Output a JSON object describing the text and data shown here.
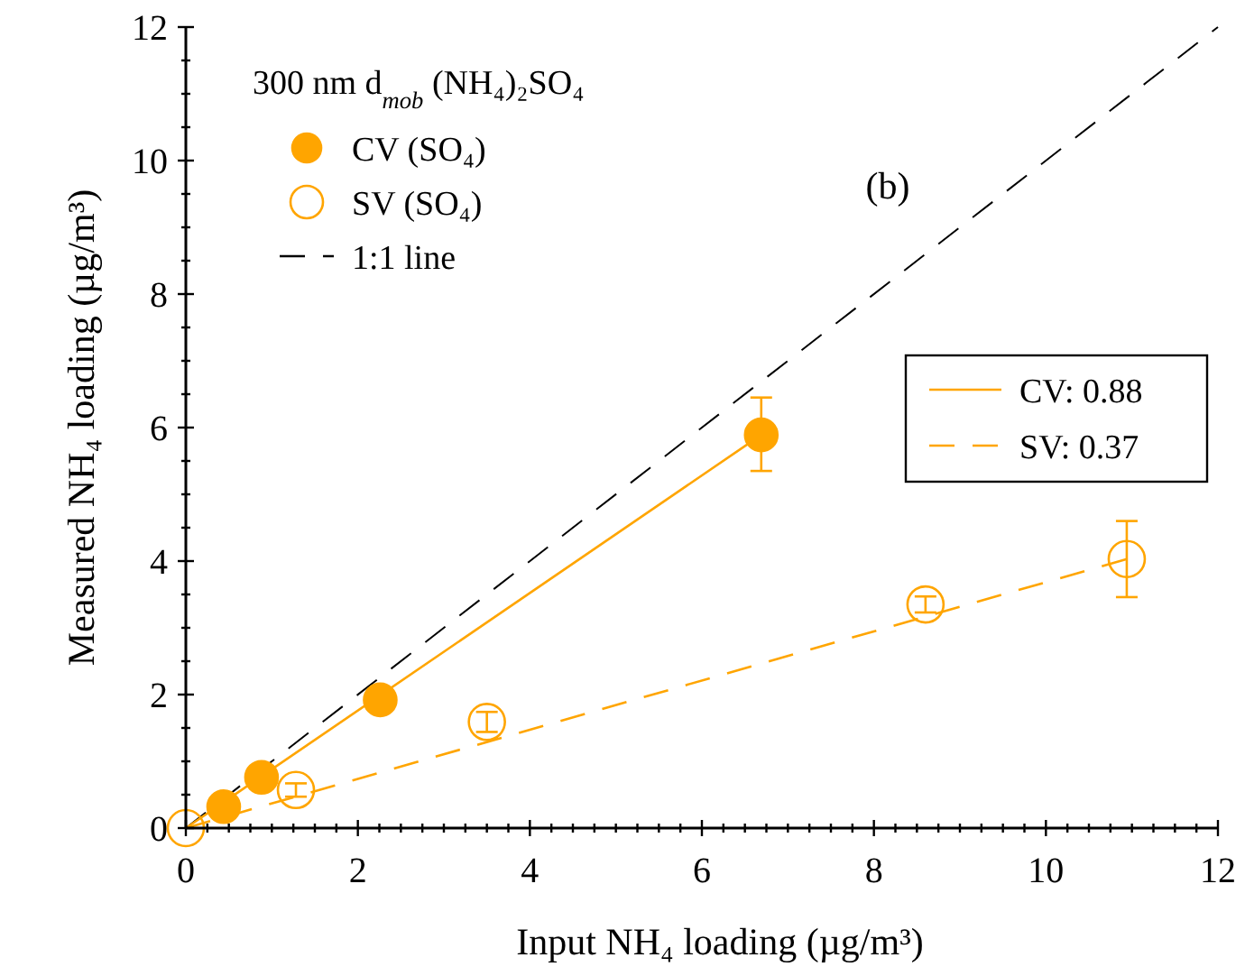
{
  "chart_data": {
    "type": "scatter",
    "xlabel": "Input NH₄ loading (µg/m³)",
    "ylabel": "Measured NH₄ loading (µg/m³)",
    "legend_title": "300 nm d$_{mob}$ (NH₄)₂SO₄",
    "annotations": [
      "(b)"
    ],
    "xlim": [
      0,
      12
    ],
    "ylim": [
      0,
      12
    ],
    "xticks": [
      0,
      {
        "value": 0.25,
        "label": null
      },
      {
        "value": 0.5,
        "label": null
      },
      {
        "value": 0.75,
        "label": null
      },
      {
        "value": 1,
        "label": null
      },
      {
        "value": 1.25,
        "label": null
      },
      {
        "value": 1.5,
        "label": null
      },
      {
        "value": 1.75,
        "label": null
      },
      2,
      {
        "value": 2.25,
        "label": null
      },
      {
        "value": 2.5,
        "label": null
      },
      {
        "value": 2.75,
        "label": null
      },
      {
        "value": 3,
        "label": null
      },
      {
        "value": 3.25,
        "label": null
      },
      {
        "value": 3.5,
        "label": null
      },
      {
        "value": 3.75,
        "label": null
      },
      4,
      {
        "value": 4.25,
        "label": null
      },
      {
        "value": 4.5,
        "label": null
      },
      {
        "value": 4.75,
        "label": null
      },
      {
        "value": 5,
        "label": null
      },
      {
        "value": 5.25,
        "label": null
      },
      {
        "value": 5.5,
        "label": null
      },
      {
        "value": 5.75,
        "label": null
      },
      6,
      {
        "value": 6.25,
        "label": null
      },
      {
        "value": 6.5,
        "label": null
      },
      {
        "value": 6.75,
        "label": null
      },
      {
        "value": 7,
        "label": null
      },
      {
        "value": 7.25,
        "label": null
      },
      {
        "value": 7.5,
        "label": null
      },
      {
        "value": 7.75,
        "label": null
      },
      8,
      {
        "value": 8.25,
        "label": null
      },
      {
        "value": 8.5,
        "label": null
      },
      {
        "value": 8.75,
        "label": null
      },
      {
        "value": 9,
        "label": null
      },
      {
        "value": 9.25,
        "label": null
      },
      {
        "value": 9.5,
        "label": null
      },
      {
        "value": 9.75,
        "label": null
      },
      10,
      {
        "value": 10.25,
        "label": null
      },
      {
        "value": 10.5,
        "label": null
      },
      {
        "value": 10.75,
        "label": null
      },
      {
        "value": 11,
        "label": null
      },
      {
        "value": 11.25,
        "label": null
      },
      {
        "value": 11.5,
        "label": null
      },
      {
        "value": 11.75,
        "label": null
      },
      12
    ],
    "yticks": [
      0,
      {
        "value": 0.5,
        "label": null
      },
      {
        "value": 1,
        "label": null
      },
      {
        "value": 1.5,
        "label": null
      },
      2,
      {
        "value": 2.5,
        "label": null
      },
      {
        "value": 3,
        "label": null
      },
      {
        "value": 3.5,
        "label": null
      },
      4,
      {
        "value": 4.5,
        "label": null
      },
      {
        "value": 5,
        "label": null
      },
      {
        "value": 5.5,
        "label": null
      },
      6,
      {
        "value": 6.5,
        "label": null
      },
      {
        "value": 7,
        "label": null
      },
      {
        "value": 7.5,
        "label": null
      },
      8,
      {
        "value": 8.5,
        "label": null
      },
      {
        "value": 9,
        "label": null
      },
      {
        "value": 9.5,
        "label": null
      },
      10,
      {
        "value": 10.5,
        "label": null
      },
      {
        "value": 11,
        "label": null
      },
      {
        "value": 11.5,
        "label": null
      },
      12
    ],
    "grid": false,
    "legend": "top left",
    "series": [
      {
        "name": "CV (SO₄)",
        "color": "#ffa500",
        "marker": "circle",
        "x": [
          0.44,
          0.88,
          2.26,
          6.69
        ],
        "values": [
          0.32,
          0.76,
          1.92,
          5.89
        ],
        "errors": [
          null,
          null,
          null,
          [
            5.35,
            6.45
          ]
        ]
      },
      {
        "name": "SV (SO₄)",
        "color": "#ffa500",
        "marker": "circle",
        "x": [
          0,
          1.28,
          3.5,
          8.6,
          10.94
        ],
        "values": [
          0,
          0.57,
          1.59,
          3.35,
          4.03
        ],
        "errors": [
          null,
          0.1,
          0.15,
          0.12,
          [
            3.46,
            4.6
          ]
        ]
      },
      {
        "name": "1:1 line",
        "type": "line",
        "color": "#000000",
        "line_style": "dashed",
        "x": [
          0,
          12
        ],
        "values": [
          0,
          12
        ]
      },
      {
        "name": "CV: 0.88",
        "type": "line",
        "color": "#ffa500",
        "line_style": "solid",
        "x": [
          0,
          6.69
        ],
        "values": [
          0,
          5.89
        ]
      },
      {
        "name": "SV: 0.37",
        "type": "line",
        "color": "#ffa500",
        "line_style": "dashed",
        "x": [
          0,
          10.94
        ],
        "values": [
          0,
          4.03
        ]
      }
    ]
  }
}
